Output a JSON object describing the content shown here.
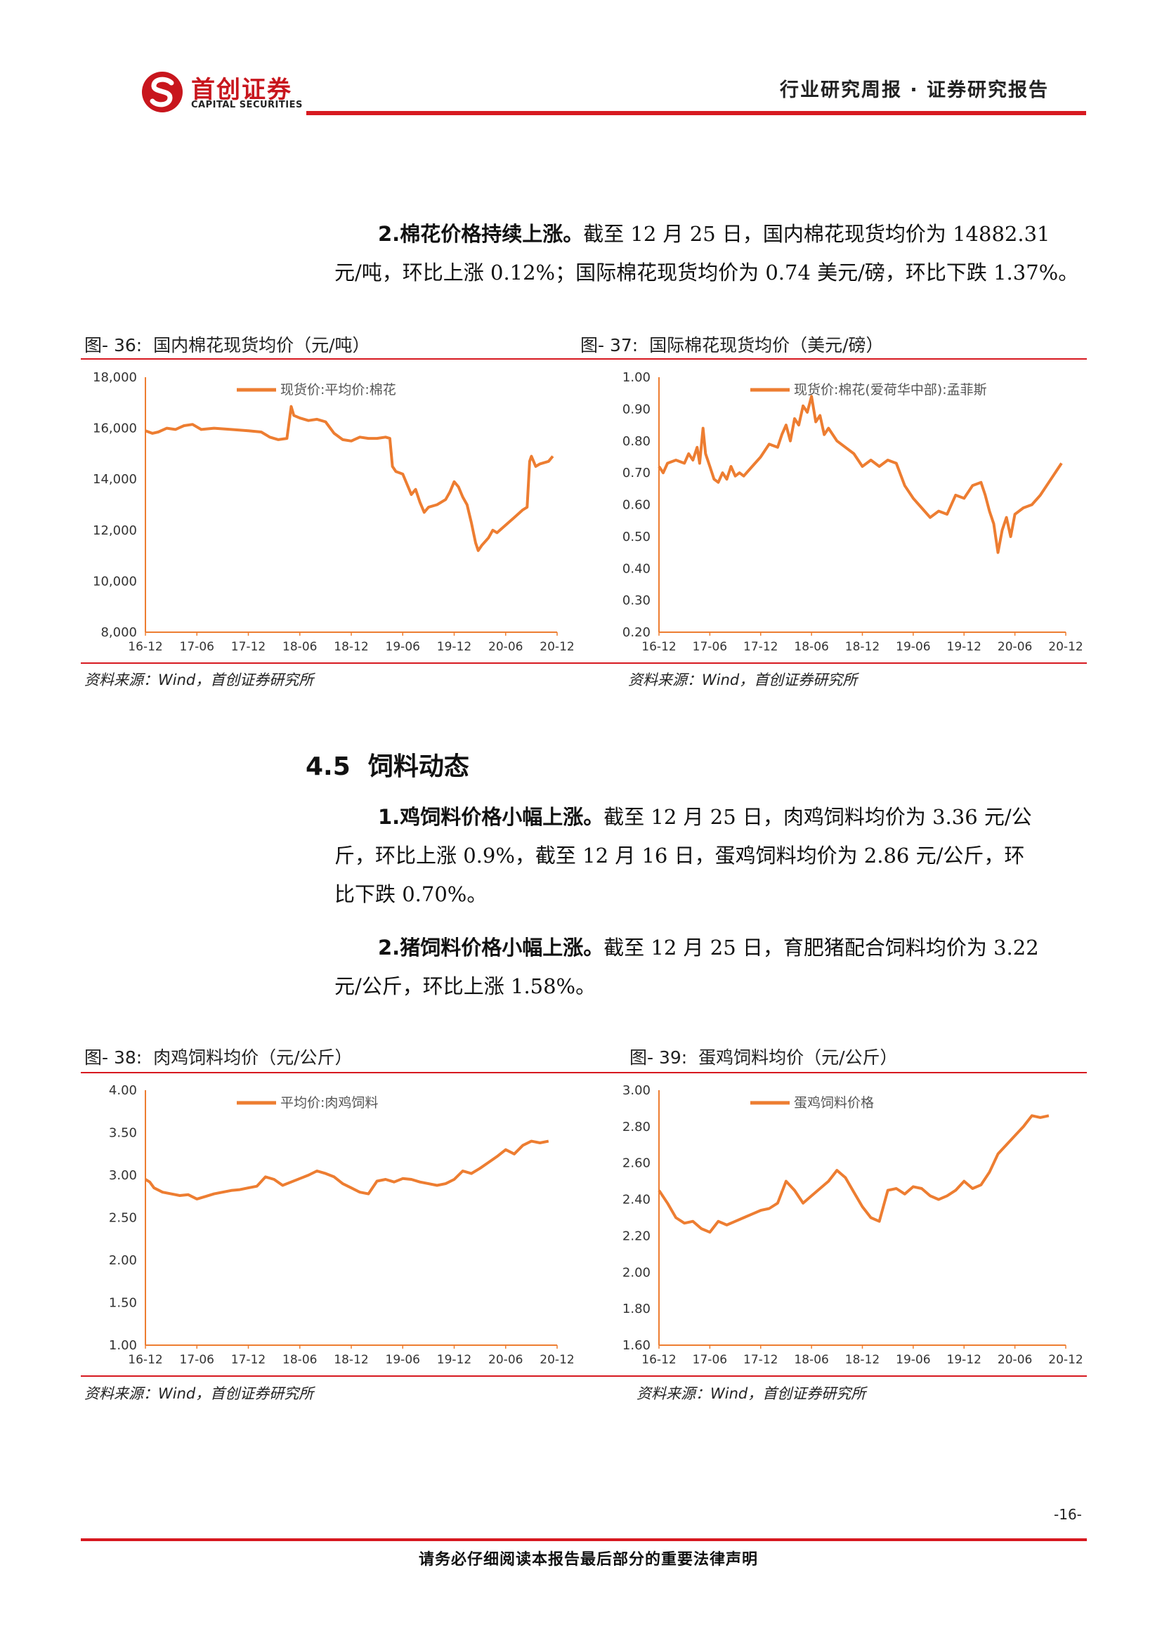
{
  "header": {
    "logo_cn": "首创证券",
    "logo_en": "CAPITAL SECURITIES",
    "report_type": "行业研究周报 · 证券研究报告"
  },
  "cotton_para": {
    "lead": "2.棉花价格持续上涨。",
    "line1_rest": "截至 12 月 25 日，国内棉花现货均价为 14882.31",
    "line2": "元/吨，环比上涨 0.12%；国际棉花现货均价为 0.74 美元/磅，环比下跌 1.37%。"
  },
  "section": {
    "title": "4.5  饲料动态"
  },
  "feed_para1": {
    "lead": "1.鸡饲料价格小幅上涨。",
    "line1_rest": "截至 12 月 25 日，肉鸡饲料均价为 3.36 元/公",
    "line2": "斤，环比上涨 0.9%，截至 12 月 16 日，蛋鸡饲料均价为 2.86 元/公斤，环",
    "line3": "比下跌 0.70%。"
  },
  "feed_para2": {
    "lead": "2.猪饲料价格小幅上涨。",
    "line1_rest": "截至 12 月 25 日，育肥猪配合饲料均价为 3.22",
    "line2": "元/公斤，环比上涨 1.58%。"
  },
  "source_text": "资料来源：Wind，首创证券研究所",
  "footer": {
    "disclaimer": "请务必仔细阅读本报告最后部分的重要法律声明",
    "page": "-16-"
  },
  "colors": {
    "series": "#ed7d31",
    "accent": "#d71920"
  },
  "chart_data": [
    {
      "type": "line",
      "fig_label": "图- 36:",
      "title": "国内棉花现货均价（元/吨）",
      "legend": "现货价:平均价:棉花",
      "ylim": [
        8000,
        18000
      ],
      "yticks": [
        "8,000",
        "10,000",
        "12,000",
        "14,000",
        "16,000",
        "18,000"
      ],
      "xticks": [
        "16-12",
        "17-06",
        "17-12",
        "18-06",
        "18-12",
        "19-06",
        "19-12",
        "20-06",
        "20-12"
      ],
      "x_range": [
        0,
        48
      ],
      "points": [
        [
          0,
          15900
        ],
        [
          0.8,
          15800
        ],
        [
          1.5,
          15850
        ],
        [
          2.5,
          16000
        ],
        [
          3.5,
          15950
        ],
        [
          4.5,
          16100
        ],
        [
          5.5,
          16150
        ],
        [
          6.5,
          15950
        ],
        [
          8,
          16000
        ],
        [
          10,
          15950
        ],
        [
          12,
          15900
        ],
        [
          13.5,
          15850
        ],
        [
          14.5,
          15650
        ],
        [
          15.5,
          15550
        ],
        [
          16.5,
          15600
        ],
        [
          17,
          16850
        ],
        [
          17.3,
          16500
        ],
        [
          18,
          16400
        ],
        [
          19,
          16300
        ],
        [
          20,
          16350
        ],
        [
          21,
          16250
        ],
        [
          22,
          15800
        ],
        [
          23,
          15550
        ],
        [
          24,
          15500
        ],
        [
          25,
          15650
        ],
        [
          26,
          15600
        ],
        [
          27,
          15600
        ],
        [
          28,
          15650
        ],
        [
          28.5,
          15600
        ],
        [
          28.8,
          14500
        ],
        [
          29.2,
          14300
        ],
        [
          30,
          14200
        ],
        [
          31,
          13400
        ],
        [
          31.5,
          13600
        ],
        [
          32,
          13100
        ],
        [
          32.5,
          12700
        ],
        [
          33,
          12900
        ],
        [
          34,
          13000
        ],
        [
          35,
          13200
        ],
        [
          35.5,
          13500
        ],
        [
          36,
          13900
        ],
        [
          36.5,
          13700
        ],
        [
          37,
          13300
        ],
        [
          37.5,
          13000
        ],
        [
          38,
          12300
        ],
        [
          38.5,
          11500
        ],
        [
          38.8,
          11200
        ],
        [
          39.2,
          11400
        ],
        [
          40,
          11700
        ],
        [
          40.5,
          12000
        ],
        [
          41,
          11900
        ],
        [
          42,
          12200
        ],
        [
          43,
          12500
        ],
        [
          44,
          12800
        ],
        [
          44.5,
          12900
        ],
        [
          44.8,
          14700
        ],
        [
          45,
          14900
        ],
        [
          45.5,
          14500
        ],
        [
          46,
          14600
        ],
        [
          47,
          14700
        ],
        [
          47.5,
          14900
        ]
      ]
    },
    {
      "type": "line",
      "fig_label": "图- 37:",
      "title": "国际棉花现货均价（美元/磅）",
      "legend": "现货价:棉花(爱荷华中部):孟菲斯",
      "ylim": [
        0.2,
        1.0
      ],
      "yticks": [
        "0.20",
        "0.30",
        "0.40",
        "0.50",
        "0.60",
        "0.70",
        "0.80",
        "0.90",
        "1.00"
      ],
      "xticks": [
        "16-12",
        "17-06",
        "17-12",
        "18-06",
        "18-12",
        "19-06",
        "19-12",
        "20-06",
        "20-12"
      ],
      "x_range": [
        0,
        48
      ],
      "points": [
        [
          0,
          0.72
        ],
        [
          0.5,
          0.7
        ],
        [
          1,
          0.73
        ],
        [
          2,
          0.74
        ],
        [
          3,
          0.73
        ],
        [
          3.5,
          0.76
        ],
        [
          4,
          0.74
        ],
        [
          4.5,
          0.78
        ],
        [
          4.8,
          0.73
        ],
        [
          5.2,
          0.84
        ],
        [
          5.5,
          0.76
        ],
        [
          6,
          0.72
        ],
        [
          6.5,
          0.68
        ],
        [
          7,
          0.67
        ],
        [
          7.5,
          0.7
        ],
        [
          8,
          0.68
        ],
        [
          8.5,
          0.72
        ],
        [
          9,
          0.69
        ],
        [
          9.5,
          0.7
        ],
        [
          10,
          0.69
        ],
        [
          11,
          0.72
        ],
        [
          12,
          0.75
        ],
        [
          13,
          0.79
        ],
        [
          14,
          0.78
        ],
        [
          14.5,
          0.82
        ],
        [
          15,
          0.85
        ],
        [
          15.5,
          0.8
        ],
        [
          16,
          0.87
        ],
        [
          16.5,
          0.85
        ],
        [
          17,
          0.91
        ],
        [
          17.5,
          0.89
        ],
        [
          18,
          0.94
        ],
        [
          18.5,
          0.86
        ],
        [
          19,
          0.88
        ],
        [
          19.5,
          0.82
        ],
        [
          20,
          0.84
        ],
        [
          21,
          0.8
        ],
        [
          22,
          0.78
        ],
        [
          23,
          0.76
        ],
        [
          24,
          0.72
        ],
        [
          25,
          0.74
        ],
        [
          26,
          0.72
        ],
        [
          27,
          0.74
        ],
        [
          28,
          0.73
        ],
        [
          29,
          0.66
        ],
        [
          30,
          0.62
        ],
        [
          31,
          0.59
        ],
        [
          32,
          0.56
        ],
        [
          33,
          0.58
        ],
        [
          34,
          0.57
        ],
        [
          35,
          0.63
        ],
        [
          36,
          0.62
        ],
        [
          37,
          0.66
        ],
        [
          38,
          0.67
        ],
        [
          38.5,
          0.63
        ],
        [
          39,
          0.58
        ],
        [
          39.5,
          0.54
        ],
        [
          40,
          0.45
        ],
        [
          40.5,
          0.52
        ],
        [
          41,
          0.56
        ],
        [
          41.5,
          0.5
        ],
        [
          42,
          0.57
        ],
        [
          43,
          0.59
        ],
        [
          44,
          0.6
        ],
        [
          45,
          0.63
        ],
        [
          46,
          0.67
        ],
        [
          47,
          0.71
        ],
        [
          47.5,
          0.73
        ]
      ]
    },
    {
      "type": "line",
      "fig_label": "图- 38:",
      "title": "肉鸡饲料均价（元/公斤）",
      "legend": "平均价:肉鸡饲料",
      "ylim": [
        1.0,
        4.0
      ],
      "yticks": [
        "1.00",
        "1.50",
        "2.00",
        "2.50",
        "3.00",
        "3.50",
        "4.00"
      ],
      "xticks": [
        "16-12",
        "17-06",
        "17-12",
        "18-06",
        "18-12",
        "19-06",
        "19-12",
        "20-06",
        "20-12"
      ],
      "x_range": [
        0,
        48
      ],
      "points": [
        [
          0,
          2.95
        ],
        [
          0.5,
          2.92
        ],
        [
          1,
          2.85
        ],
        [
          2,
          2.8
        ],
        [
          3,
          2.78
        ],
        [
          4,
          2.76
        ],
        [
          5,
          2.77
        ],
        [
          6,
          2.72
        ],
        [
          7,
          2.75
        ],
        [
          8,
          2.78
        ],
        [
          9,
          2.8
        ],
        [
          10,
          2.82
        ],
        [
          11,
          2.83
        ],
        [
          12,
          2.85
        ],
        [
          13,
          2.87
        ],
        [
          14,
          2.98
        ],
        [
          15,
          2.95
        ],
        [
          16,
          2.88
        ],
        [
          17,
          2.92
        ],
        [
          18,
          2.96
        ],
        [
          19,
          3.0
        ],
        [
          20,
          3.05
        ],
        [
          21,
          3.02
        ],
        [
          22,
          2.98
        ],
        [
          23,
          2.9
        ],
        [
          24,
          2.85
        ],
        [
          25,
          2.8
        ],
        [
          26,
          2.78
        ],
        [
          27,
          2.93
        ],
        [
          28,
          2.95
        ],
        [
          29,
          2.92
        ],
        [
          30,
          2.96
        ],
        [
          31,
          2.95
        ],
        [
          32,
          2.92
        ],
        [
          33,
          2.9
        ],
        [
          34,
          2.88
        ],
        [
          35,
          2.9
        ],
        [
          36,
          2.95
        ],
        [
          37,
          3.05
        ],
        [
          38,
          3.02
        ],
        [
          39,
          3.08
        ],
        [
          40,
          3.15
        ],
        [
          41,
          3.22
        ],
        [
          42,
          3.3
        ],
        [
          43,
          3.25
        ],
        [
          44,
          3.35
        ],
        [
          45,
          3.4
        ],
        [
          46,
          3.38
        ],
        [
          47,
          3.4
        ]
      ]
    },
    {
      "type": "line",
      "fig_label": "图- 39:",
      "title": "蛋鸡饲料均价（元/公斤）",
      "legend": "蛋鸡饲料价格",
      "ylim": [
        1.6,
        3.0
      ],
      "yticks": [
        "1.60",
        "1.80",
        "2.00",
        "2.20",
        "2.40",
        "2.60",
        "2.80",
        "3.00"
      ],
      "xticks": [
        "16-12",
        "17-06",
        "17-12",
        "18-06",
        "18-12",
        "19-06",
        "19-12",
        "20-06",
        "20-12"
      ],
      "x_range": [
        0,
        48
      ],
      "points": [
        [
          0,
          2.45
        ],
        [
          1,
          2.38
        ],
        [
          2,
          2.3
        ],
        [
          3,
          2.27
        ],
        [
          4,
          2.28
        ],
        [
          5,
          2.24
        ],
        [
          6,
          2.22
        ],
        [
          7,
          2.28
        ],
        [
          8,
          2.26
        ],
        [
          9,
          2.28
        ],
        [
          10,
          2.3
        ],
        [
          11,
          2.32
        ],
        [
          12,
          2.34
        ],
        [
          13,
          2.35
        ],
        [
          14,
          2.38
        ],
        [
          15,
          2.5
        ],
        [
          16,
          2.45
        ],
        [
          17,
          2.38
        ],
        [
          18,
          2.42
        ],
        [
          19,
          2.46
        ],
        [
          20,
          2.5
        ],
        [
          21,
          2.56
        ],
        [
          22,
          2.52
        ],
        [
          23,
          2.44
        ],
        [
          24,
          2.36
        ],
        [
          25,
          2.3
        ],
        [
          26,
          2.28
        ],
        [
          27,
          2.45
        ],
        [
          28,
          2.46
        ],
        [
          29,
          2.43
        ],
        [
          30,
          2.47
        ],
        [
          31,
          2.46
        ],
        [
          32,
          2.42
        ],
        [
          33,
          2.4
        ],
        [
          34,
          2.42
        ],
        [
          35,
          2.45
        ],
        [
          36,
          2.5
        ],
        [
          37,
          2.46
        ],
        [
          38,
          2.48
        ],
        [
          39,
          2.55
        ],
        [
          40,
          2.65
        ],
        [
          41,
          2.7
        ],
        [
          42,
          2.75
        ],
        [
          43,
          2.8
        ],
        [
          44,
          2.86
        ],
        [
          45,
          2.85
        ],
        [
          46,
          2.86
        ]
      ]
    }
  ]
}
